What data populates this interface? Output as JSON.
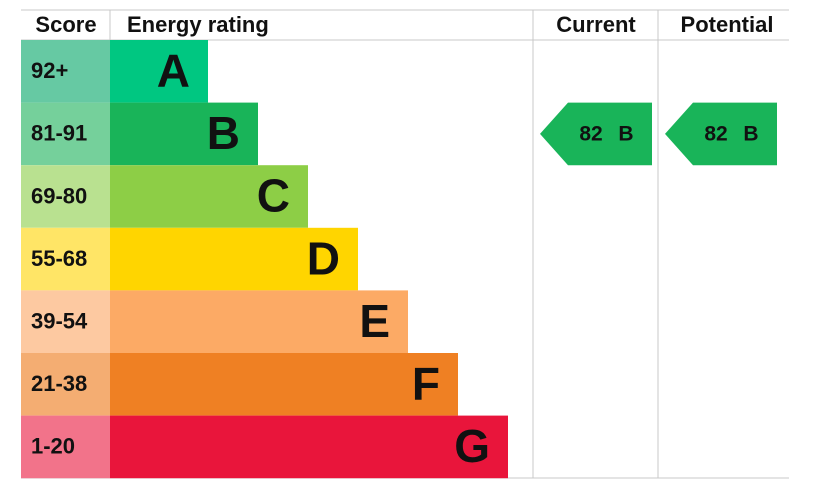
{
  "header": {
    "score": "Score",
    "energy_rating": "Energy rating",
    "current": "Current",
    "potential": "Potential"
  },
  "bands": [
    {
      "score": "92+",
      "letter": "A",
      "color": "#00c781",
      "score_color": "#66c9a3"
    },
    {
      "score": "81-91",
      "letter": "B",
      "color": "#19b459",
      "score_color": "#75d09b"
    },
    {
      "score": "69-80",
      "letter": "C",
      "color": "#8dce46",
      "score_color": "#b9e190"
    },
    {
      "score": "55-68",
      "letter": "D",
      "color": "#ffd500",
      "score_color": "#ffe566"
    },
    {
      "score": "39-54",
      "letter": "E",
      "color": "#fcaa65",
      "score_color": "#fdc9a1"
    },
    {
      "score": "21-38",
      "letter": "F",
      "color": "#ef8023",
      "score_color": "#f4ad72"
    },
    {
      "score": "1-20",
      "letter": "G",
      "color": "#e9153b",
      "score_color": "#f2738a"
    }
  ],
  "current": {
    "value": 82,
    "letter": "B"
  },
  "potential": {
    "value": 82,
    "letter": "B"
  }
}
